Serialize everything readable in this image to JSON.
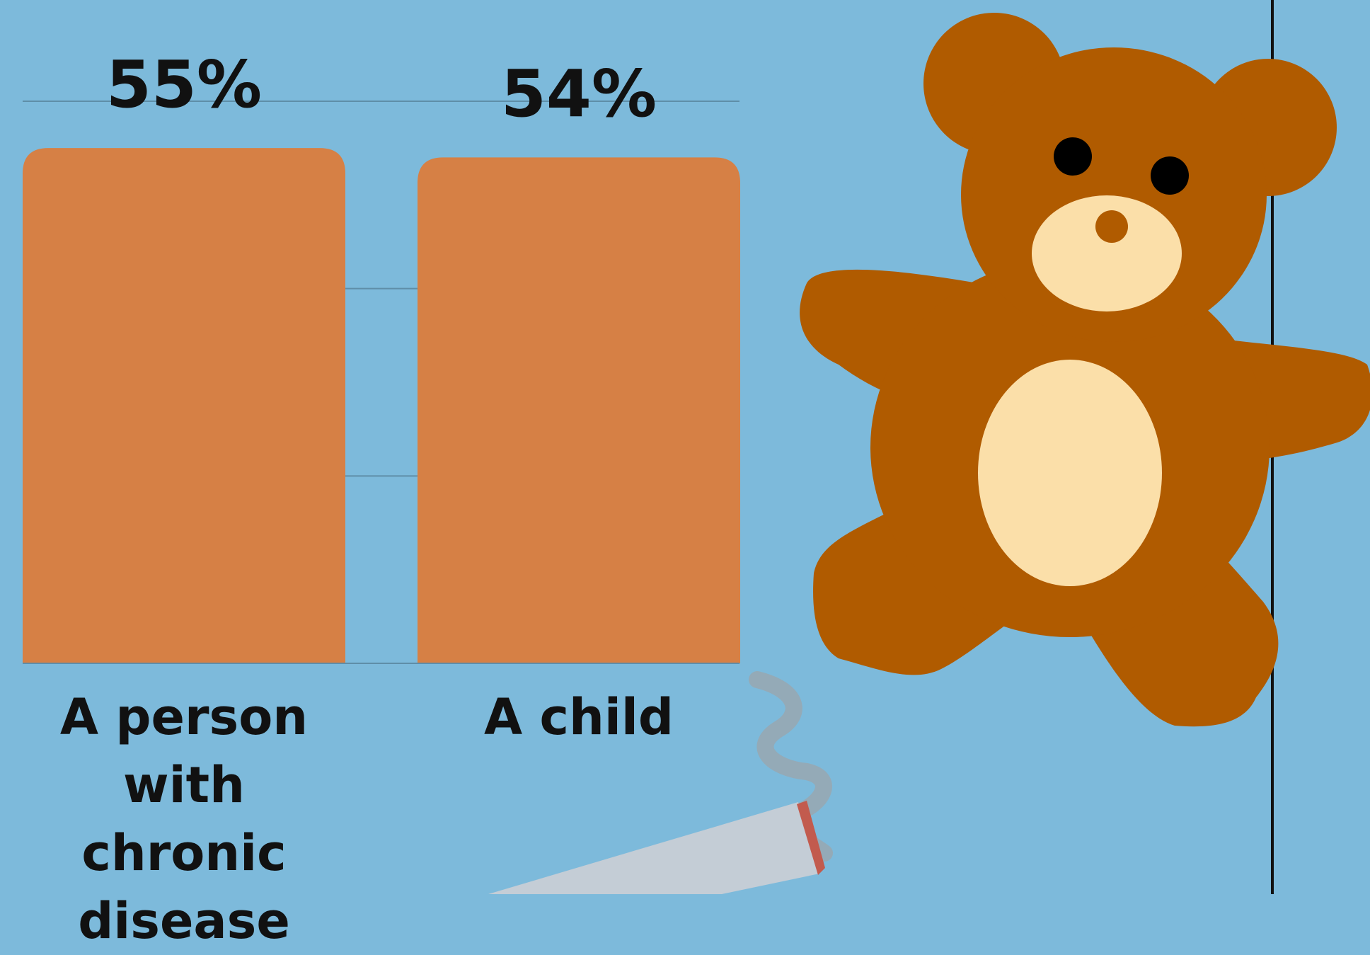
{
  "chart_data": {
    "type": "bar",
    "categories": [
      "A person with chronic disease",
      "A child"
    ],
    "category_lines": [
      [
        "A person with",
        "chronic",
        "disease"
      ],
      [
        "A child"
      ]
    ],
    "values": [
      55,
      54
    ],
    "data_labels": [
      "55%",
      "54%"
    ],
    "ylim": [
      0,
      60
    ],
    "grid": true,
    "bar_color": "#d68045"
  },
  "illustrations": [
    "teddy-bear",
    "cigarette"
  ],
  "colors": {
    "background": "#7dbadb",
    "bar": "#d68045",
    "bear_fur": "#b05b00",
    "bear_muzzle": "#fbdfa9",
    "cigarette": "#c4cdd6",
    "smoke": "#97a8b3"
  }
}
